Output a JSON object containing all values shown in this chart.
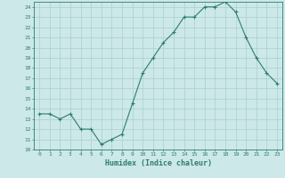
{
  "x": [
    0,
    1,
    2,
    3,
    4,
    5,
    6,
    7,
    8,
    9,
    10,
    11,
    12,
    13,
    14,
    15,
    16,
    17,
    18,
    19,
    20,
    21,
    22,
    23
  ],
  "y": [
    13.5,
    13.5,
    13.0,
    13.5,
    12.0,
    12.0,
    10.5,
    11.0,
    11.5,
    14.5,
    17.5,
    19.0,
    20.5,
    21.5,
    23.0,
    23.0,
    24.0,
    24.0,
    24.5,
    23.5,
    21.0,
    19.0,
    17.5,
    16.5
  ],
  "line_color": "#2e7d6e",
  "marker": "+",
  "marker_color": "#2e7d6e",
  "bg_color": "#cce8e8",
  "grid_color": "#aacfcf",
  "tick_color": "#2e7d6e",
  "xlabel": "Humidex (Indice chaleur)",
  "xlim": [
    -0.5,
    23.5
  ],
  "ylim": [
    10,
    24.5
  ],
  "yticks": [
    10,
    11,
    12,
    13,
    14,
    15,
    16,
    17,
    18,
    19,
    20,
    21,
    22,
    23,
    24
  ],
  "xticks": [
    0,
    1,
    2,
    3,
    4,
    5,
    6,
    7,
    8,
    9,
    10,
    11,
    12,
    13,
    14,
    15,
    16,
    17,
    18,
    19,
    20,
    21,
    22,
    23
  ]
}
